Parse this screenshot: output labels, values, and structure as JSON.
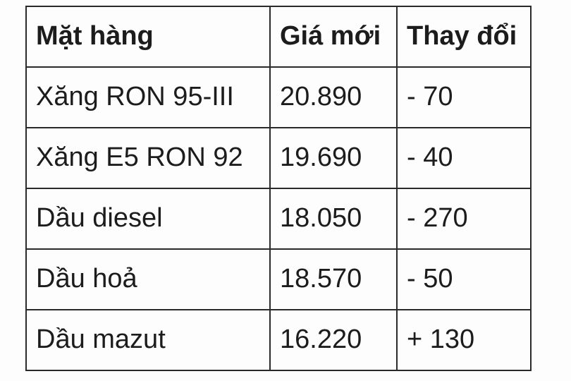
{
  "chart_data": {
    "type": "table",
    "title": "",
    "columns": [
      "Mặt hàng",
      "Giá mới",
      "Thay đổi"
    ],
    "rows": [
      [
        "Xăng RON 95-III",
        "20.890",
        "- 70"
      ],
      [
        "Xăng E5 RON 92",
        "19.690",
        "- 40"
      ],
      [
        "Dầu diesel",
        "18.050",
        "- 270"
      ],
      [
        "Dầu hoả",
        "18.570",
        "- 50"
      ],
      [
        "Dầu mazut",
        "16.220",
        "+ 130"
      ]
    ]
  },
  "colors": {
    "border": "#2a2a2a",
    "text": "#1c1c1c",
    "background": "#fdfdfd"
  }
}
